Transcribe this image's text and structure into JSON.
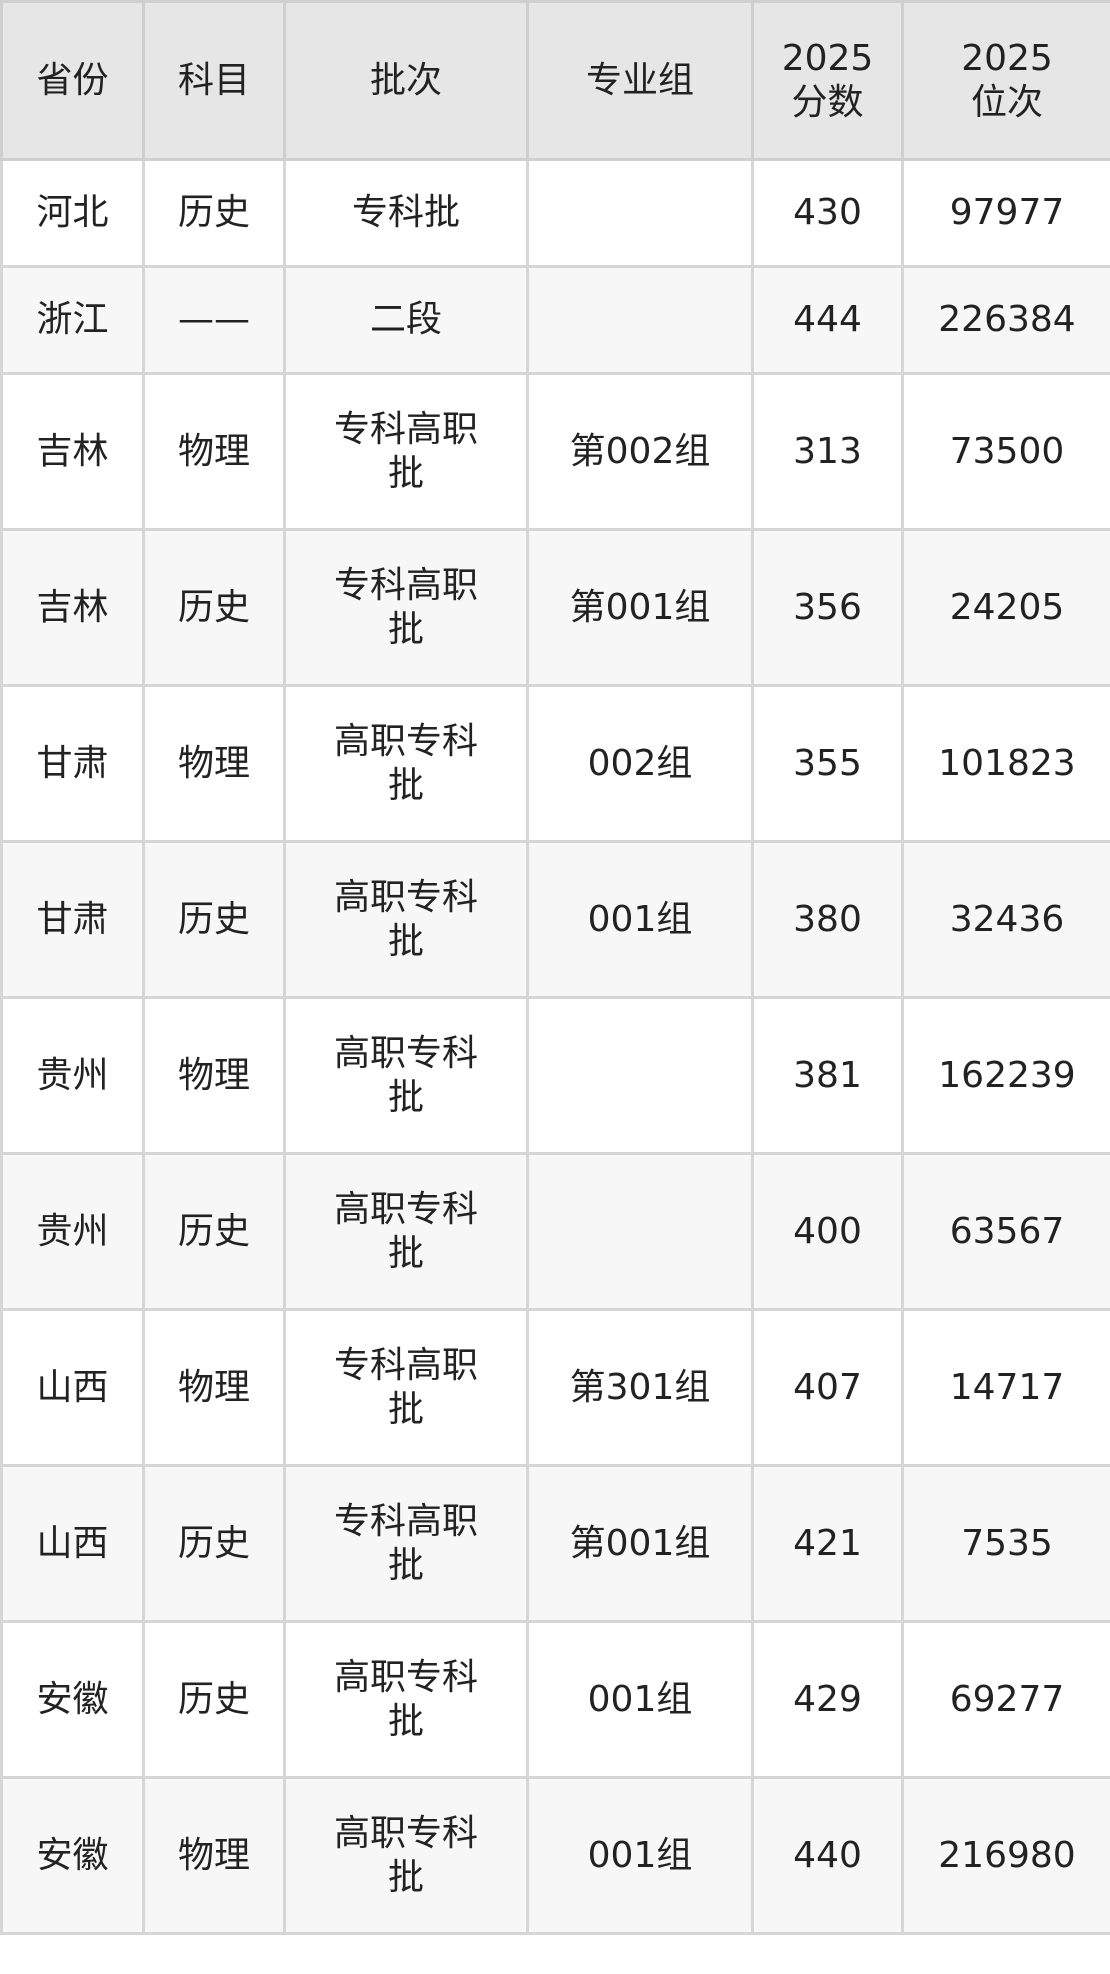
{
  "headers": [
    "省份",
    "科目",
    "批次",
    "专业组",
    "2025\n分数",
    "2025\n位次"
  ],
  "rows": [
    [
      "河北",
      "历史",
      "专科批",
      "",
      "430",
      "97977"
    ],
    [
      "浙江",
      "——",
      "二段",
      "",
      "444",
      "226384"
    ],
    [
      "吉林",
      "物理",
      "专科高职批",
      "第002组",
      "313",
      "73500"
    ],
    [
      "吉林",
      "历史",
      "专科高职批",
      "第001组",
      "356",
      "24205"
    ],
    [
      "甘肃",
      "物理",
      "高职专科批",
      "002组",
      "355",
      "101823"
    ],
    [
      "甘肃",
      "历史",
      "高职专科批",
      "001组",
      "380",
      "32436"
    ],
    [
      "贵州",
      "物理",
      "高职专科批",
      "",
      "381",
      "162239"
    ],
    [
      "贵州",
      "历史",
      "高职专科批",
      "",
      "400",
      "63567"
    ],
    [
      "山西",
      "物理",
      "专科高职批",
      "第301组",
      "407",
      "14717"
    ],
    [
      "山西",
      "历史",
      "专科高职批",
      "第001组",
      "421",
      "7535"
    ],
    [
      "安徽",
      "历史",
      "高职专科批",
      "001组",
      "429",
      "69277"
    ],
    [
      "安徽",
      "物理",
      "高职专科批",
      "001组",
      "440",
      "216980"
    ]
  ]
}
